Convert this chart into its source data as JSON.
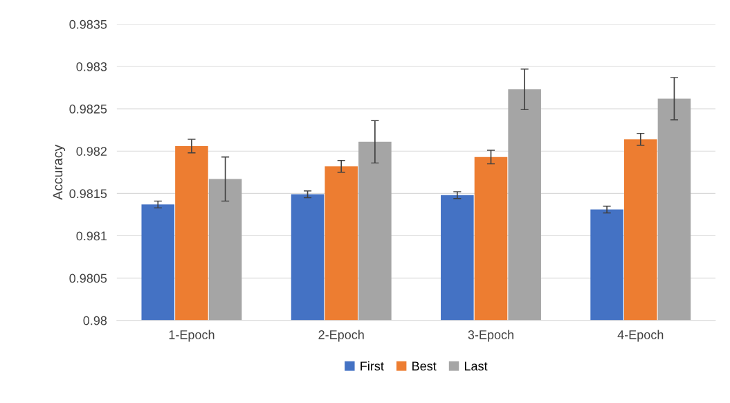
{
  "chart_data": {
    "type": "bar",
    "ylabel": "Accuracy",
    "categories": [
      "1-Epoch",
      "2-Epoch",
      "3-Epoch",
      "4-Epoch"
    ],
    "series": [
      {
        "name": "First",
        "color": "#4472c4",
        "values": [
          0.98137,
          0.98149,
          0.98148,
          0.98131
        ],
        "errors": [
          4e-05,
          4e-05,
          4e-05,
          4e-05
        ]
      },
      {
        "name": "Best",
        "color": "#ed7d31",
        "values": [
          0.98206,
          0.98182,
          0.98193,
          0.98214
        ],
        "errors": [
          8e-05,
          7e-05,
          8e-05,
          7e-05
        ]
      },
      {
        "name": "Last",
        "color": "#a5a5a5",
        "values": [
          0.98167,
          0.98211,
          0.98273,
          0.98262
        ],
        "errors": [
          0.00026,
          0.00025,
          0.00024,
          0.00025
        ]
      }
    ],
    "ylim": [
      0.98,
      0.9835
    ],
    "yticks": [
      0.98,
      0.9805,
      0.981,
      0.9815,
      0.982,
      0.9825,
      0.983,
      0.9835
    ],
    "grid": "y",
    "legend": "bottom"
  }
}
